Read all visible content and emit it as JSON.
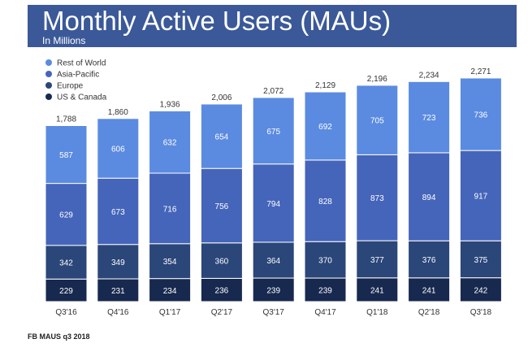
{
  "header": {
    "title": "Monthly Active Users (MAUs)",
    "subtitle": "In Millions"
  },
  "caption": "FB MAUS q3 2018",
  "colors": {
    "header_bg": "#3b5998",
    "Rest of World": "#5b8be0",
    "Asia-Pacific": "#4565ba",
    "Europe": "#2b4679",
    "US & Canada": "#18294f"
  },
  "chart_data": {
    "type": "bar",
    "stacked": true,
    "title": "Monthly Active Users (MAUs)",
    "subtitle": "In Millions",
    "xlabel": "",
    "ylabel": "",
    "ylim": [
      0,
      2400
    ],
    "grid": false,
    "legend_position": "top-left",
    "categories": [
      "Q3'16",
      "Q4'16",
      "Q1'17",
      "Q2'17",
      "Q3'17",
      "Q4'17",
      "Q1'18",
      "Q2'18",
      "Q3'18"
    ],
    "totals": [
      "1,788",
      "1,860",
      "1,936",
      "2,006",
      "2,072",
      "2,129",
      "2,196",
      "2,234",
      "2,271"
    ],
    "series": [
      {
        "name": "US & Canada",
        "color": "#18294f",
        "values": [
          229,
          231,
          234,
          236,
          239,
          239,
          241,
          241,
          242
        ]
      },
      {
        "name": "Europe",
        "color": "#2b4679",
        "values": [
          342,
          349,
          354,
          360,
          364,
          370,
          377,
          376,
          375
        ]
      },
      {
        "name": "Asia-Pacific",
        "color": "#4565ba",
        "values": [
          629,
          673,
          716,
          756,
          794,
          828,
          873,
          894,
          917
        ]
      },
      {
        "name": "Rest of World",
        "color": "#5b8be0",
        "values": [
          587,
          606,
          632,
          654,
          675,
          692,
          705,
          723,
          736
        ]
      }
    ],
    "legend_order": [
      "Rest of World",
      "Asia-Pacific",
      "Europe",
      "US & Canada"
    ]
  }
}
